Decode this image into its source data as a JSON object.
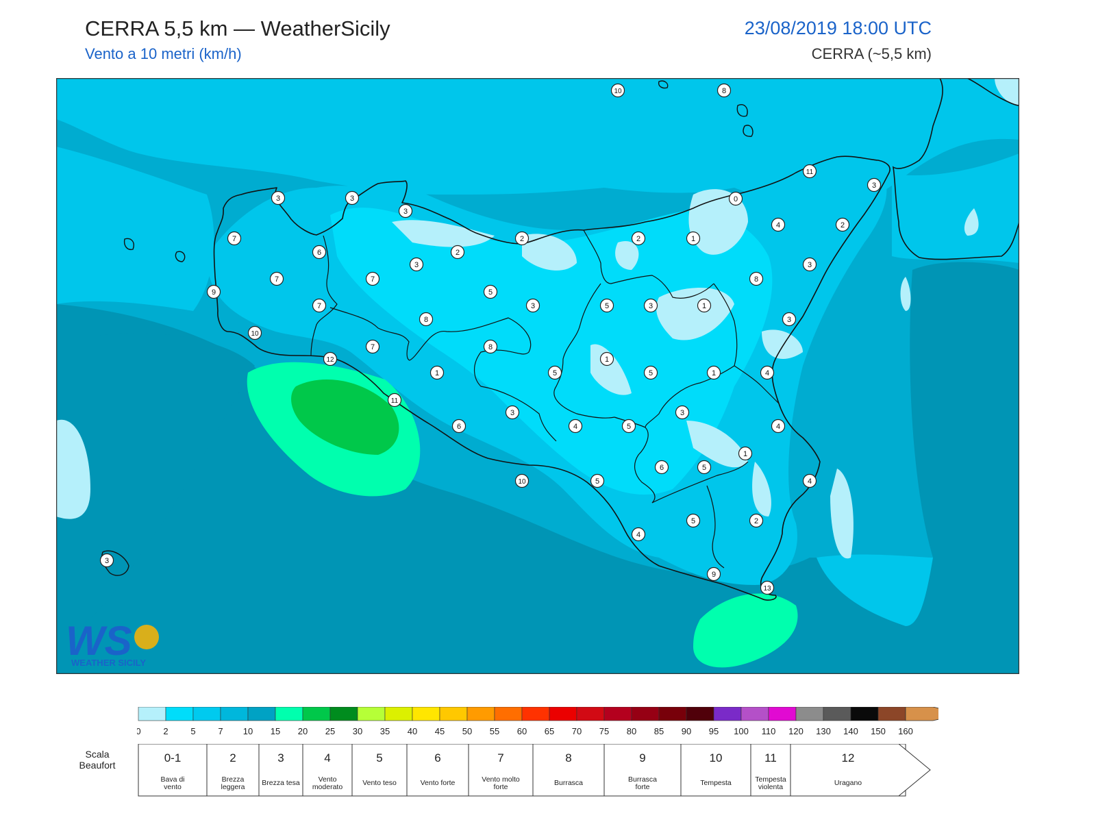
{
  "header": {
    "title": "CERRA 5,5 km — WeatherSicily",
    "subtitle": "Vento a 10 metri (km/h)",
    "datetime": "23/08/2019 18:00 UTC",
    "model": "CERRA (~5,5 km)"
  },
  "logo": {
    "letters": "WS",
    "text": "WEATHER SICILY"
  },
  "colors": {
    "sea_dark": "#0095b5",
    "sea_mid": "#00acd0",
    "land_base": "#00c6eb",
    "land_light": "#00dcfa",
    "calm": "#b5f0fb",
    "gust_light": "#00ffae",
    "gust_dark": "#00c84a",
    "coast": "#111111"
  },
  "colorbar": {
    "ticks": [
      "0",
      "2",
      "5",
      "7",
      "10",
      "15",
      "20",
      "25",
      "30",
      "35",
      "40",
      "45",
      "50",
      "55",
      "60",
      "65",
      "70",
      "75",
      "80",
      "85",
      "90",
      "95",
      "100",
      "110",
      "120",
      "130",
      "140",
      "150",
      "160"
    ],
    "colors": [
      "#b5f0fb",
      "#00ddfa",
      "#00caef",
      "#00b7dc",
      "#00a2c4",
      "#00ffae",
      "#00c84a",
      "#008c1e",
      "#b6ff37",
      "#dcf000",
      "#ffe600",
      "#ffc800",
      "#ff9b00",
      "#ff6e00",
      "#ff3200",
      "#eb0000",
      "#d20a14",
      "#b4001e",
      "#960014",
      "#78000a",
      "#50000a",
      "#7a2ac8",
      "#b450c8",
      "#e10ad2",
      "#8c8c8c",
      "#5a5a5a",
      "#0a0a0a",
      "#8c4628",
      "#d7914a"
    ]
  },
  "beaufort": {
    "axis_label": "Scala Beaufort",
    "levels": [
      {
        "num": "0-1",
        "desc": "Bava di vento"
      },
      {
        "num": "2",
        "desc": "Brezza leggera"
      },
      {
        "num": "3",
        "desc": "Brezza tesa"
      },
      {
        "num": "4",
        "desc": "Vento moderato"
      },
      {
        "num": "5",
        "desc": "Vento teso"
      },
      {
        "num": "6",
        "desc": "Vento forte"
      },
      {
        "num": "7",
        "desc": "Vento molto forte"
      },
      {
        "num": "8",
        "desc": "Burrasca"
      },
      {
        "num": "9",
        "desc": "Burrasca forte"
      },
      {
        "num": "10",
        "desc": "Tempesta"
      },
      {
        "num": "11",
        "desc": "Tempesta violenta"
      },
      {
        "num": "12",
        "desc": "Uragano"
      }
    ]
  },
  "station_values": [
    "10",
    "8",
    "11",
    "3",
    "3",
    "3",
    "3",
    "0",
    "2",
    "4",
    "2",
    "7",
    "6",
    "2",
    "2",
    "1",
    "3",
    "7",
    "7",
    "3",
    "8",
    "9",
    "7",
    "5",
    "3",
    "5",
    "3",
    "1",
    "3",
    "10",
    "8",
    "7",
    "8",
    "1",
    "12",
    "1",
    "5",
    "5",
    "1",
    "4",
    "11",
    "3",
    "3",
    "6",
    "4",
    "5",
    "4",
    "1",
    "6",
    "5",
    "4",
    "10",
    "5",
    "5",
    "2",
    "4",
    "9",
    "13",
    "3"
  ]
}
